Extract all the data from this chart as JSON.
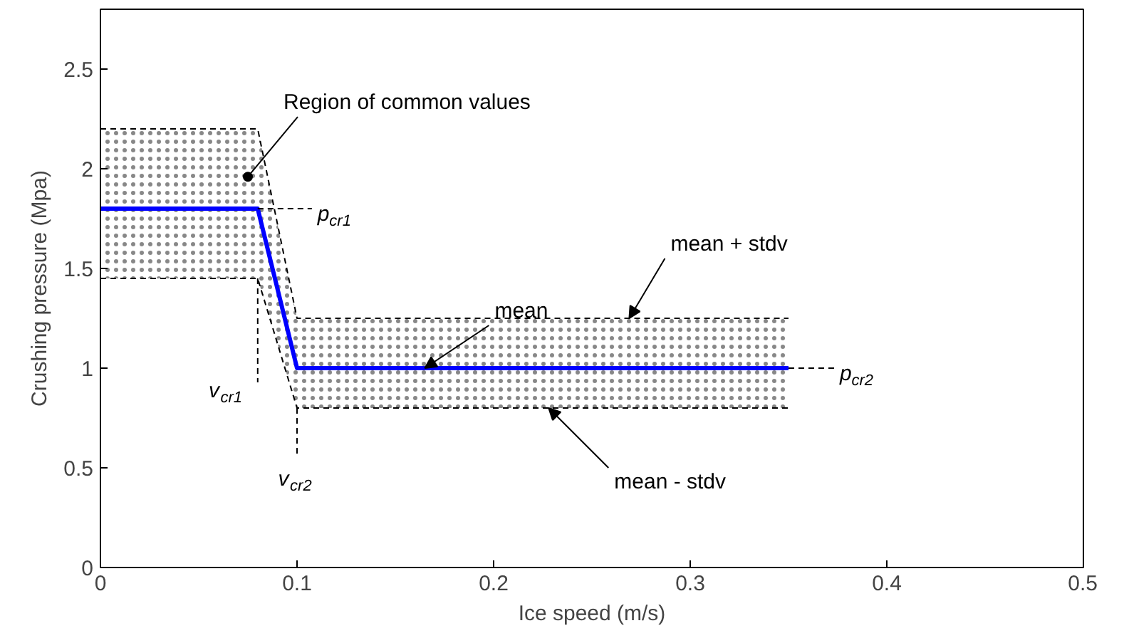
{
  "chart_data": {
    "type": "line",
    "xlabel": "Ice speed (m/s)",
    "ylabel": "Crushing pressure (Mpa)",
    "x": [
      0,
      0.08,
      0.1,
      0.35
    ],
    "series": [
      {
        "color": "#0000ff",
        "values": [
          1.8,
          1.8,
          1.0,
          1.0
        ],
        "lower": [
          1.45,
          1.45,
          0.8,
          0.8
        ],
        "upper": [
          2.2,
          2.2,
          1.25,
          1.25
        ]
      },
      {
        "color": "#000000",
        "line_style": "dashed",
        "values": [
          2.2,
          2.2,
          1.25,
          1.25
        ]
      },
      {
        "color": "#000000",
        "line_style": "dashed",
        "values": [
          1.45,
          1.45,
          0.8,
          0.8
        ]
      }
    ],
    "xlim": [
      0,
      0.5
    ],
    "xticks": [
      0,
      0.1,
      0.2,
      0.3,
      0.4,
      0.5
    ],
    "ylim": [
      0,
      2.8
    ],
    "yticks": [
      0,
      0.5,
      1,
      1.5,
      2,
      2.5
    ],
    "grid": false,
    "line_style": "solid",
    "marker": "none",
    "annotations": [
      {
        "text": "Region of common values",
        "x": 0.075,
        "y": 1.96
      },
      {
        "text": "p$_{cr1}$",
        "x": 0.08,
        "y": 1.8
      },
      {
        "text": "p$_{cr2}$",
        "x": 0.35,
        "y": 1.0
      },
      {
        "text": "v$_{cr1}$",
        "x": 0.08,
        "y": 1.45
      },
      {
        "text": "v$_{cr2}$",
        "x": 0.1,
        "y": 0.8
      },
      {
        "text": "mean",
        "x": 0.165,
        "y": 1.0
      },
      {
        "text": "mean + stdv",
        "x": 0.269,
        "y": 1.25
      },
      {
        "text": "mean - stdv",
        "x": 0.228,
        "y": 0.8
      }
    ]
  }
}
